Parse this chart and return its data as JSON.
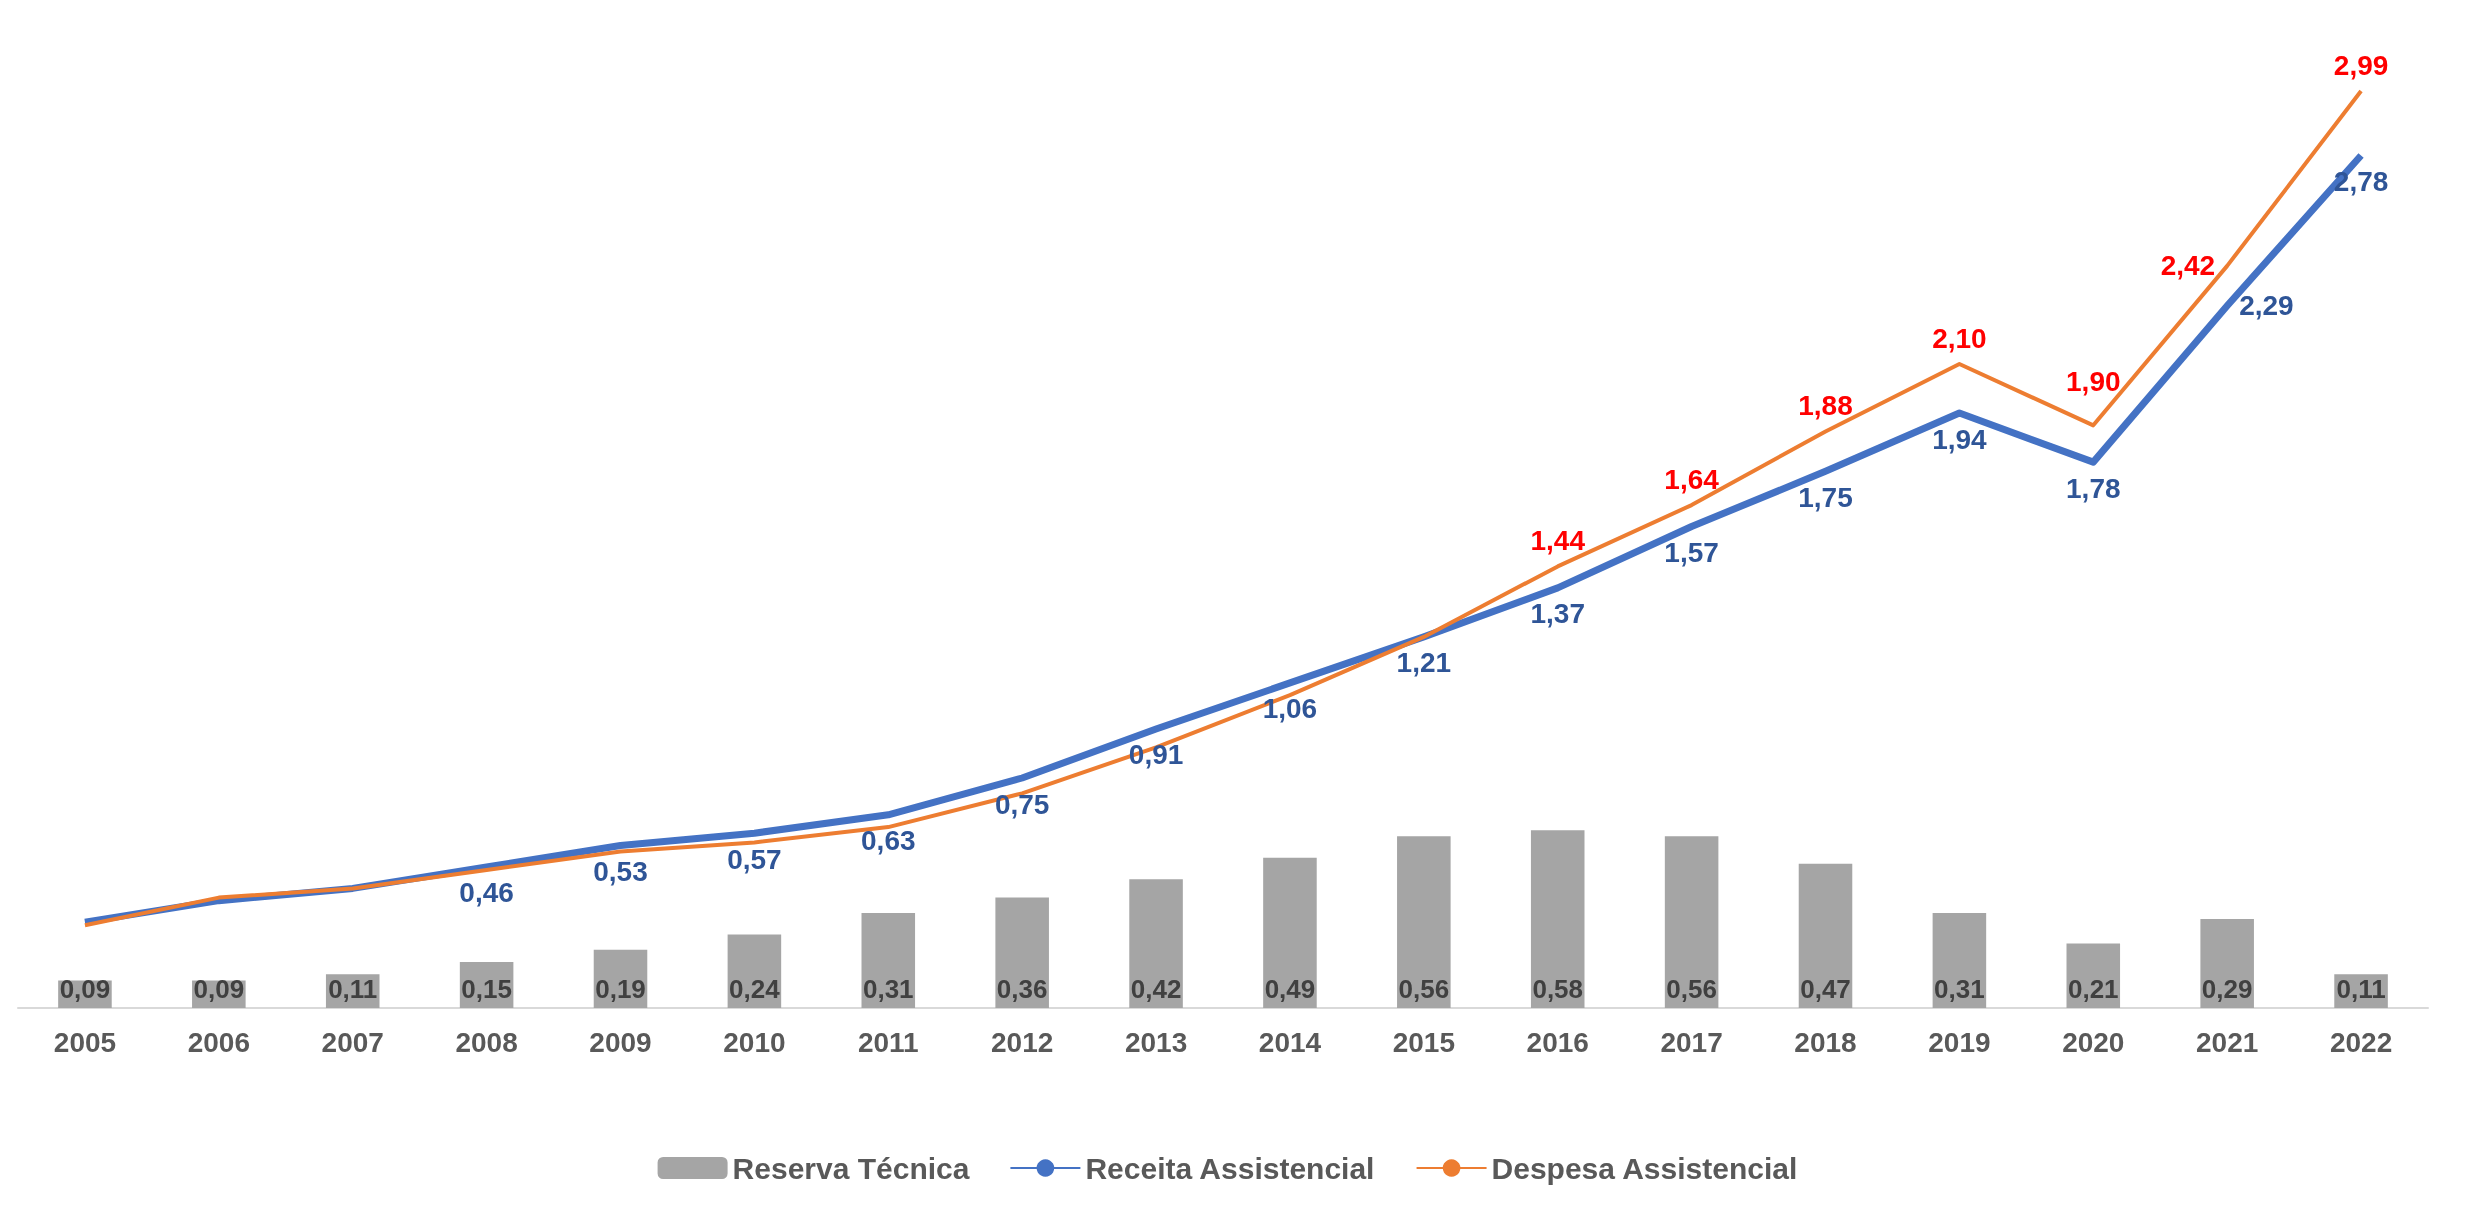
{
  "chart_data": {
    "type": "bar",
    "categories": [
      "2005",
      "2006",
      "2007",
      "2008",
      "2009",
      "2010",
      "2011",
      "2012",
      "2013",
      "2014",
      "2015",
      "2016",
      "2017",
      "2018",
      "2019",
      "2020",
      "2021",
      "2022"
    ],
    "series": [
      {
        "name": "Reserva Técnica",
        "color": "#a5a5a5",
        "values": [
          0.09,
          0.09,
          0.11,
          0.15,
          0.19,
          0.24,
          0.31,
          0.36,
          0.42,
          0.49,
          0.56,
          0.58,
          0.56,
          0.47,
          0.31,
          0.21,
          0.29,
          0.11
        ],
        "value_labels": [
          "0,09",
          "0,09",
          "0,11",
          "0,15",
          "0,19",
          "0,24",
          "0,31",
          "0,36",
          "0,42",
          "0,49",
          "0,56",
          "0,58",
          "0,56",
          "0,47",
          "0,31",
          "0,21",
          "0,29",
          "0,11"
        ]
      },
      {
        "name": "Receita Assistencial",
        "type": "line",
        "color": "#4472c4",
        "values": [
          0.28,
          0.35,
          0.39,
          0.46,
          0.53,
          0.57,
          0.63,
          0.75,
          0.91,
          1.06,
          1.21,
          1.37,
          1.57,
          1.75,
          1.94,
          1.78,
          2.29,
          2.78
        ],
        "value_labels": [
          null,
          null,
          null,
          "0,46",
          "0,53",
          "0,57",
          "0,63",
          "0,75",
          "0,91",
          "1,06",
          "1,21",
          "1,37",
          "1,57",
          "1,75",
          "1,94",
          "1,78",
          "2,29",
          "2,78"
        ]
      },
      {
        "name": "Despesa Assistencial",
        "type": "line",
        "color": "#ed7d31",
        "values": [
          0.27,
          0.36,
          0.39,
          0.45,
          0.51,
          0.54,
          0.59,
          0.7,
          0.85,
          1.02,
          1.21,
          1.44,
          1.64,
          1.88,
          2.1,
          1.9,
          2.42,
          2.99
        ],
        "value_labels": [
          null,
          null,
          null,
          null,
          null,
          null,
          null,
          null,
          null,
          null,
          null,
          "1,44",
          "1,64",
          "1,88",
          "2,10",
          "1,90",
          "2,42",
          "2,99"
        ]
      }
    ],
    "legend": "bottom",
    "tick_labels": "x"
  }
}
